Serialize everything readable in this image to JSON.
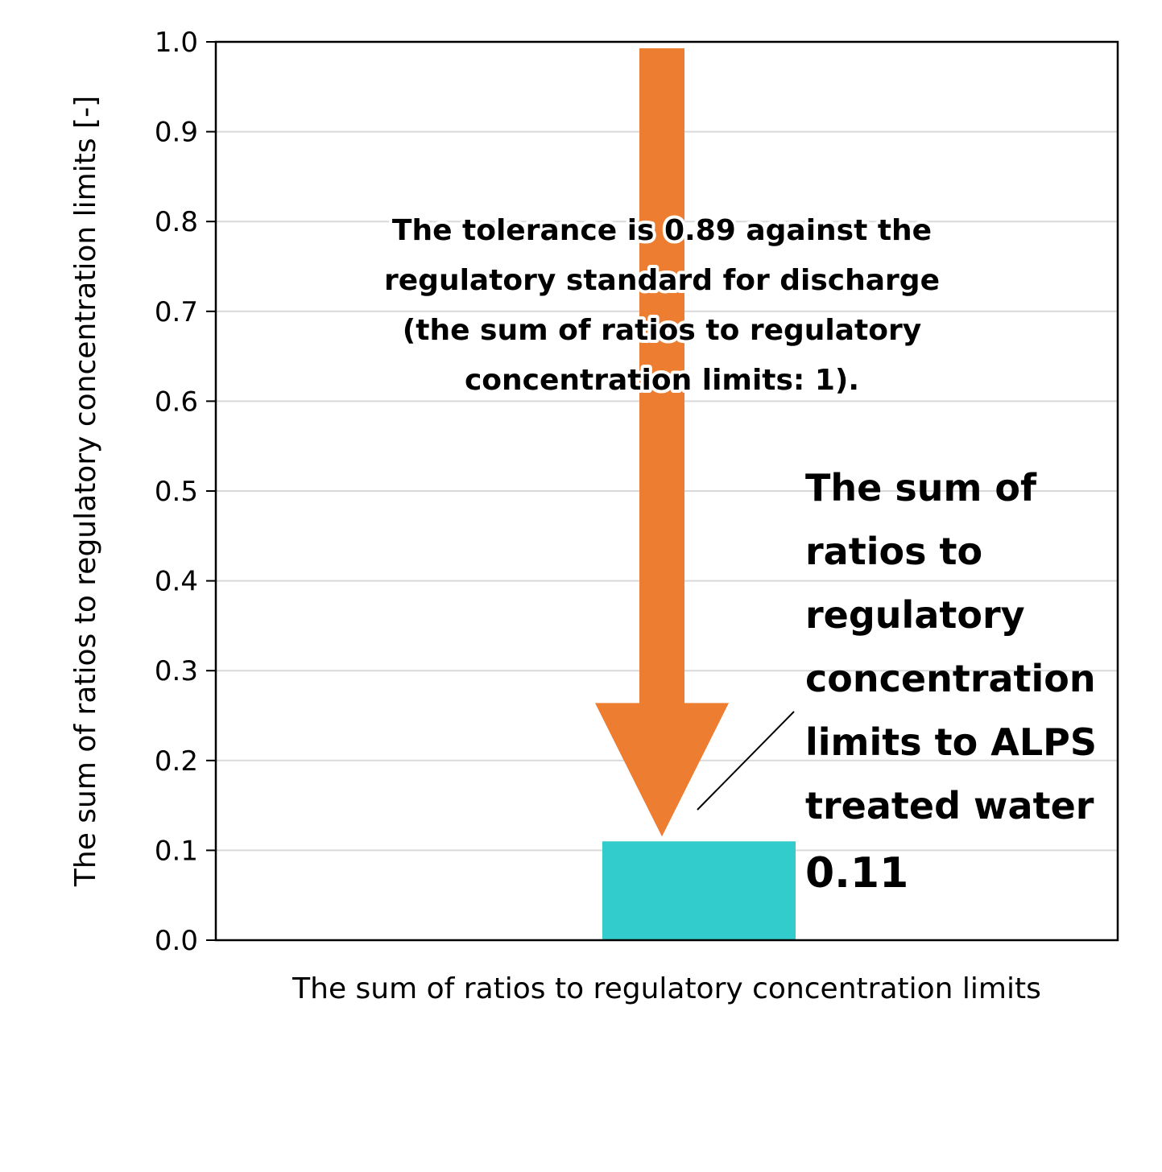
{
  "chart_data": {
    "type": "bar",
    "categories": [
      "The sum of ratios to regulatory concentration limits"
    ],
    "values": [
      0.11
    ],
    "xlabel": "The sum of ratios to regulatory concentration limits",
    "ylabel": "The sum of ratios to regulatory concentration limits [-]",
    "ylim": [
      0,
      1.0
    ],
    "yticks": [
      "0.0",
      "0.1",
      "0.2",
      "0.3",
      "0.4",
      "0.5",
      "0.6",
      "0.7",
      "0.8",
      "0.9",
      "1.0"
    ],
    "grid": true,
    "legend": "none",
    "bar_color": "#33CCCC",
    "annotations": {
      "arrow": {
        "from": 1.0,
        "to": 0.11,
        "color": "#ED7D31",
        "text_lines": [
          "The tolerance is 0.89 against the",
          "regulatory standard for discharge",
          "(the sum of ratios to regulatory",
          "concentration limits: 1)."
        ]
      },
      "callout": {
        "text_lines": [
          "The sum of",
          "ratios to",
          "regulatory",
          "concentration",
          "limits to ALPS",
          "treated water"
        ],
        "value_label": "0.11"
      }
    }
  }
}
